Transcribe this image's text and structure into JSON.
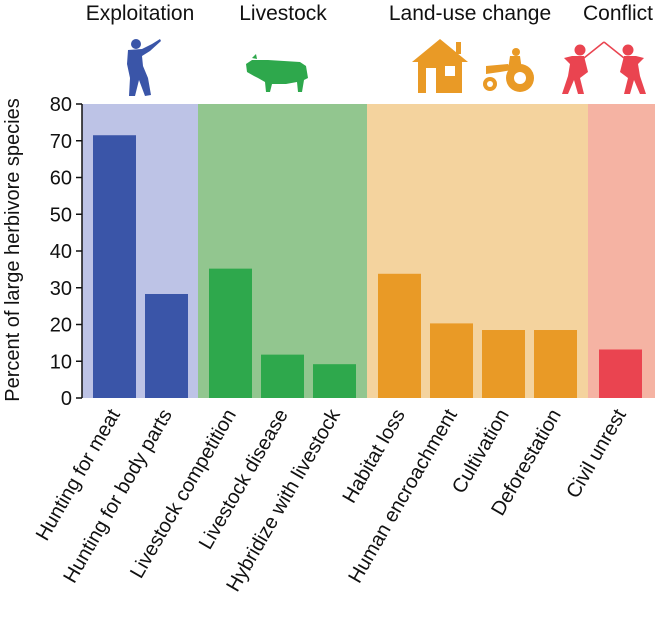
{
  "chart_data": {
    "type": "bar",
    "ylabel": "Percent of large herbivore species",
    "ylim": [
      0,
      80
    ],
    "yticks": [
      0,
      10,
      20,
      30,
      40,
      50,
      60,
      70,
      80
    ],
    "groups": [
      {
        "name": "Exploitation",
        "band_color": "#bdc3e6",
        "bar_color": "#3a55a8",
        "icon": "hunter-icon",
        "categories": [
          "Hunting for meat",
          "Hunting for body parts"
        ],
        "values": [
          71.5,
          28.3
        ]
      },
      {
        "name": "Livestock",
        "band_color": "#92c68f",
        "bar_color": "#2ea84c",
        "icon": "cow-icon",
        "categories": [
          "Livestock competition",
          "Livestock disease",
          "Hybridize with livestock"
        ],
        "values": [
          35.2,
          11.8,
          9.2
        ]
      },
      {
        "name": "Land-use change",
        "band_color": "#f4d39e",
        "bar_color": "#e99a26",
        "icon": "house-tractor-icon",
        "categories": [
          "Habitat loss",
          "Human encroachment",
          "Cultivation",
          "Deforestation"
        ],
        "values": [
          33.8,
          20.3,
          18.5,
          18.5
        ]
      },
      {
        "name": "Conflict",
        "band_color": "#f5b3a3",
        "bar_color": "#ea4450",
        "icon": "fencers-icon",
        "categories": [
          "Civil unrest"
        ],
        "values": [
          13.2
        ]
      }
    ]
  }
}
